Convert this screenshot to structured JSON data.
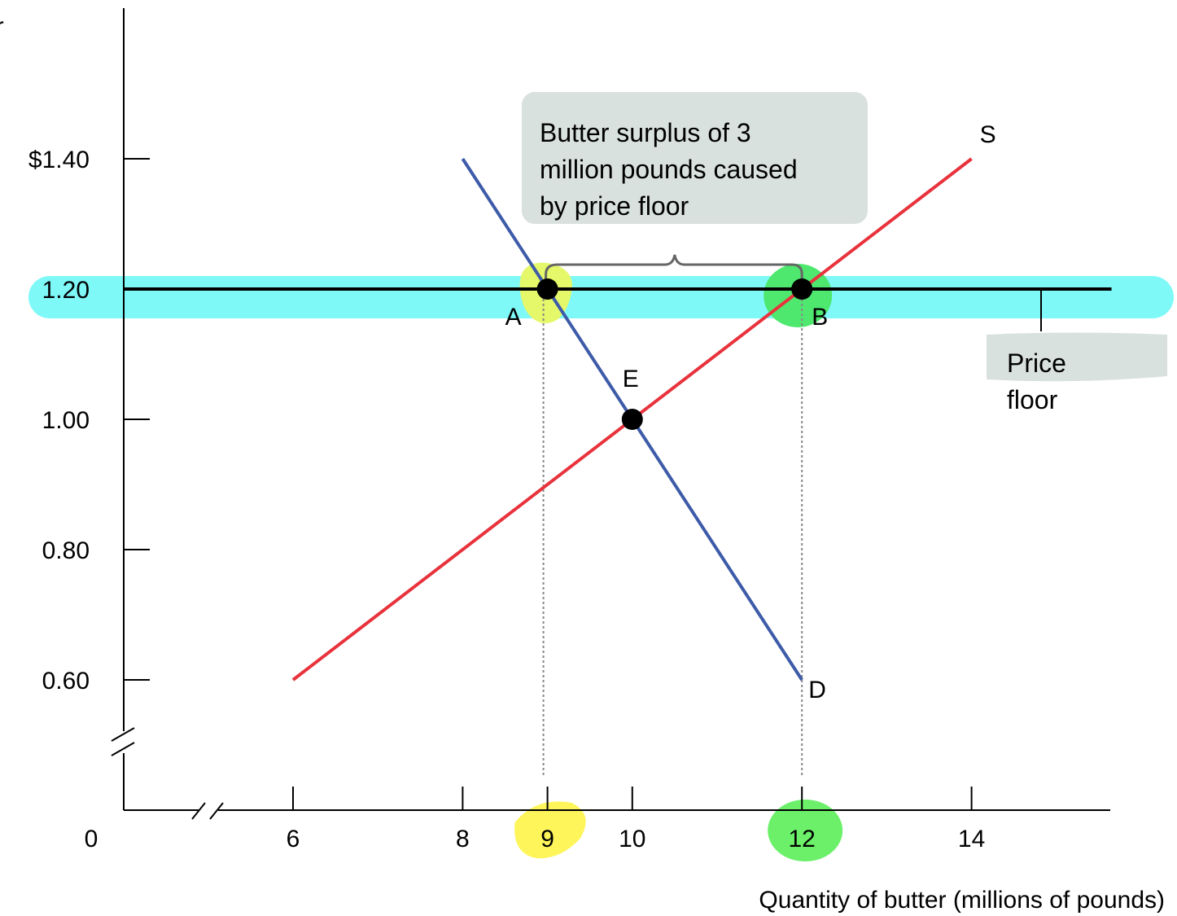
{
  "chart_data": {
    "type": "line",
    "title": "",
    "ylabel": "er",
    "xlabel": "Quantity of butter (millions of pounds)",
    "origin_label": "0",
    "x_ticks": [
      {
        "value": 6,
        "label": "6"
      },
      {
        "value": 8,
        "label": "8"
      },
      {
        "value": 9,
        "label": "9",
        "highlight": "#fdf55a"
      },
      {
        "value": 10,
        "label": "10"
      },
      {
        "value": 12,
        "label": "12",
        "highlight": "#6cf06a"
      },
      {
        "value": 14,
        "label": "14"
      }
    ],
    "y_ticks": [
      {
        "value": 0.6,
        "label": "0.60"
      },
      {
        "value": 0.8,
        "label": "0.80"
      },
      {
        "value": 1.0,
        "label": "1.00"
      },
      {
        "value": 1.2,
        "label": "1.20"
      },
      {
        "value": 1.4,
        "label": "$1.40"
      }
    ],
    "series": [
      {
        "name": "S",
        "color": "#e8323c",
        "points": [
          [
            6,
            0.6
          ],
          [
            14,
            1.4
          ]
        ]
      },
      {
        "name": "D",
        "color": "#3d5ba8",
        "points": [
          [
            8,
            1.4
          ],
          [
            12,
            0.6
          ]
        ]
      }
    ],
    "price_floor": {
      "value": 1.2,
      "x_end": 15.65,
      "band_color": "#7ff8f8",
      "label": "Price floor"
    },
    "points": [
      {
        "name": "A",
        "x": 9,
        "y": 1.2,
        "highlight": "#e5f86a"
      },
      {
        "name": "B",
        "x": 12,
        "y": 1.2,
        "highlight": "#4ee86e"
      },
      {
        "name": "E",
        "x": 10,
        "y": 1.0
      }
    ],
    "annotation": {
      "lines": [
        "Butter surplus of 3",
        "million pounds caused",
        "by  price floor"
      ],
      "bg": "#d9e1df"
    },
    "axis_breaks": true
  }
}
